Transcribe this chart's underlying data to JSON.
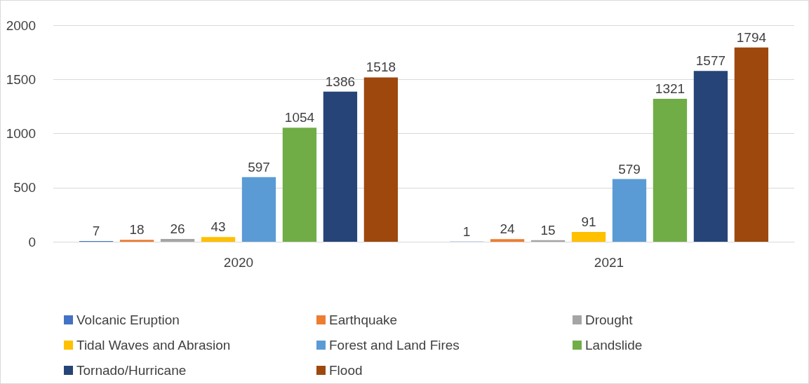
{
  "chart_data": {
    "type": "bar",
    "categories": [
      "2020",
      "2021"
    ],
    "series": [
      {
        "name": "Volcanic Eruption",
        "color": "#4472c4",
        "values": [
          7,
          1
        ]
      },
      {
        "name": "Earthquake",
        "color": "#ed7d31",
        "values": [
          18,
          24
        ]
      },
      {
        "name": "Drought",
        "color": "#a5a5a5",
        "values": [
          26,
          15
        ]
      },
      {
        "name": "Tidal Waves and Abrasion",
        "color": "#ffc000",
        "values": [
          43,
          91
        ]
      },
      {
        "name": "Forest and Land Fires",
        "color": "#5b9bd5",
        "values": [
          597,
          579
        ]
      },
      {
        "name": "Landslide",
        "color": "#70ad47",
        "values": [
          1054,
          1321
        ]
      },
      {
        "name": "Tornado/Hurricane",
        "color": "#264478",
        "values": [
          1386,
          1577
        ]
      },
      {
        "name": "Flood",
        "color": "#9e480e",
        "values": [
          1518,
          1794
        ]
      }
    ],
    "ylim": [
      0,
      2000
    ],
    "yticks": [
      0,
      500,
      1000,
      1500,
      2000
    ],
    "grid": "y",
    "legend": "bottom",
    "data_labels": true
  }
}
